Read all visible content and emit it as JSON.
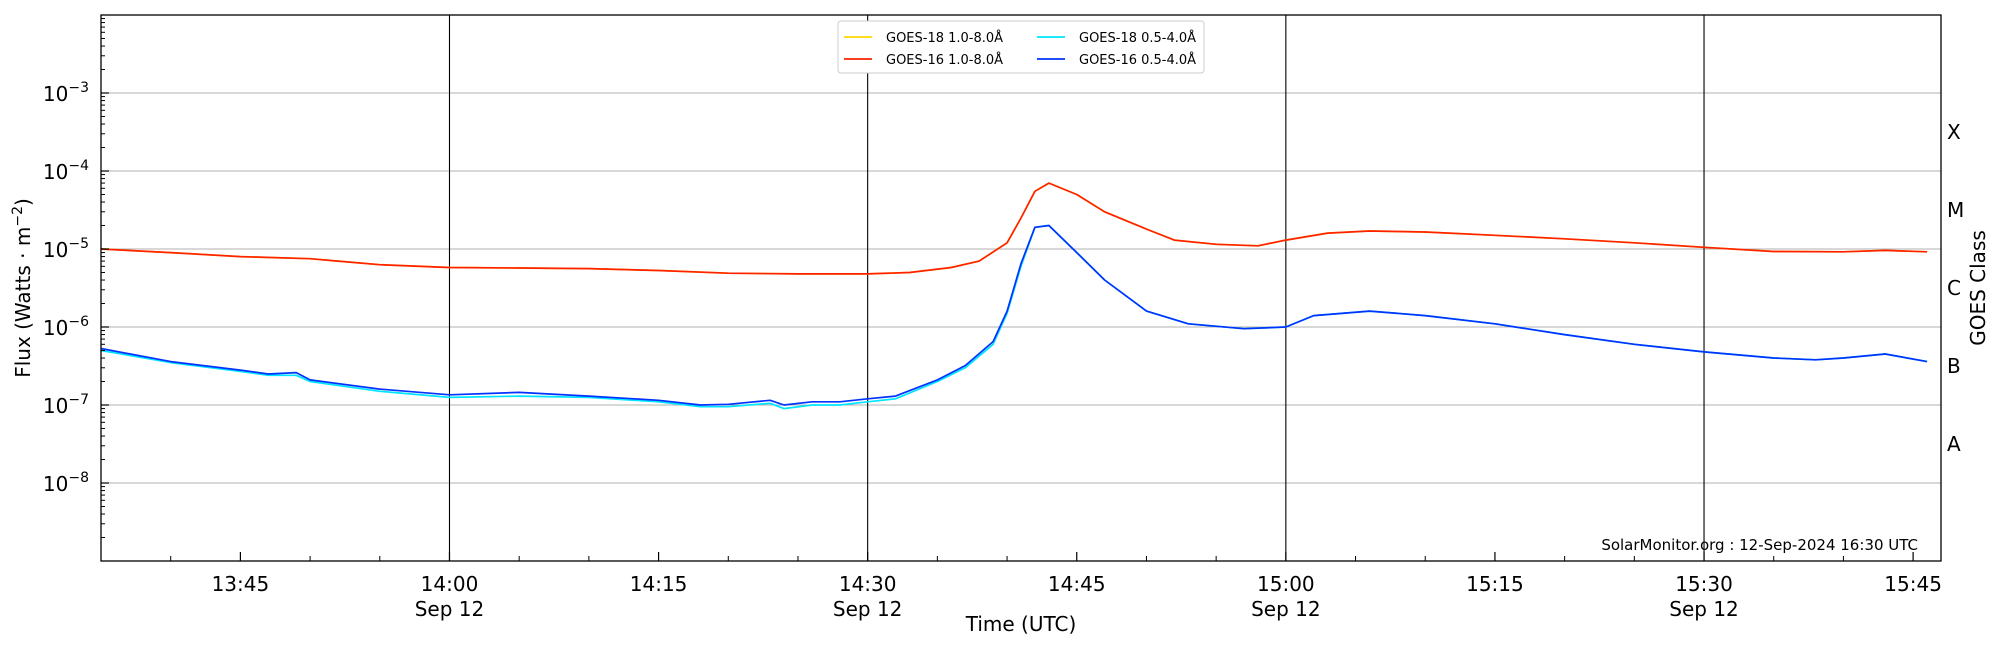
{
  "chart_data": {
    "type": "line",
    "title": "",
    "xlabel": "Time (UTC)",
    "ylabel_text": "Flux (Watts · m",
    "ylabel_exponent": "−2",
    "ylabel_close": ")",
    "y2label": "GOES Class",
    "y_scale": "log",
    "ylim": [
      1e-09,
      0.01
    ],
    "xlim": [
      "13:35",
      "15:47"
    ],
    "grid": "horizontal",
    "legend_position": "top-center",
    "credit": "SolarMonitor.org : 12-Sep-2024 16:30 UTC",
    "x_ticks": [
      {
        "time": "13:45",
        "label": "13:45",
        "date": ""
      },
      {
        "time": "14:00",
        "label": "14:00",
        "date": "Sep 12"
      },
      {
        "time": "14:15",
        "label": "14:15",
        "date": ""
      },
      {
        "time": "14:30",
        "label": "14:30",
        "date": "Sep 12"
      },
      {
        "time": "14:45",
        "label": "14:45",
        "date": ""
      },
      {
        "time": "15:00",
        "label": "15:00",
        "date": "Sep 12"
      },
      {
        "time": "15:15",
        "label": "15:15",
        "date": ""
      },
      {
        "time": "15:30",
        "label": "15:30",
        "date": "Sep 12"
      },
      {
        "time": "15:45",
        "label": "15:45",
        "date": ""
      }
    ],
    "day_lines": [
      "14:00",
      "14:30",
      "15:00",
      "15:30"
    ],
    "y_ticks": [
      {
        "value": 1e-08,
        "base": "10",
        "exp": "−8"
      },
      {
        "value": 1e-07,
        "base": "10",
        "exp": "−7"
      },
      {
        "value": 1e-06,
        "base": "10",
        "exp": "−6"
      },
      {
        "value": 1e-05,
        "base": "10",
        "exp": "−5"
      },
      {
        "value": 0.0001,
        "base": "10",
        "exp": "−4"
      },
      {
        "value": 0.001,
        "base": "10",
        "exp": "−3"
      }
    ],
    "goes_classes": [
      {
        "label": "A",
        "value": 3.16e-08
      },
      {
        "label": "B",
        "value": 3.16e-07
      },
      {
        "label": "C",
        "value": 3.16e-06
      },
      {
        "label": "M",
        "value": 3.16e-05
      },
      {
        "label": "X",
        "value": 0.000316
      }
    ],
    "series": [
      {
        "name": "GOES-18 1.0-8.0Å",
        "color": "#ffd700",
        "points": [
          [
            "13:35",
            1e-05
          ],
          [
            "13:40",
            9e-06
          ],
          [
            "13:45",
            8e-06
          ],
          [
            "13:50",
            7.5e-06
          ],
          [
            "13:52",
            7e-06
          ],
          [
            "13:55",
            6.3e-06
          ],
          [
            "14:00",
            5.8e-06
          ],
          [
            "14:05",
            5.7e-06
          ],
          [
            "14:10",
            5.6e-06
          ],
          [
            "14:15",
            5.3e-06
          ],
          [
            "14:20",
            4.9e-06
          ],
          [
            "14:25",
            4.8e-06
          ],
          [
            "14:30",
            4.8e-06
          ],
          [
            "14:33",
            5e-06
          ],
          [
            "14:36",
            5.8e-06
          ],
          [
            "14:38",
            7e-06
          ],
          [
            "14:40",
            1.2e-05
          ],
          [
            "14:41",
            2.5e-05
          ],
          [
            "14:42",
            5.5e-05
          ],
          [
            "14:43",
            7e-05
          ],
          [
            "14:45",
            5e-05
          ],
          [
            "14:47",
            3e-05
          ],
          [
            "14:50",
            1.8e-05
          ],
          [
            "14:52",
            1.3e-05
          ],
          [
            "14:55",
            1.15e-05
          ],
          [
            "14:58",
            1.1e-05
          ],
          [
            "15:00",
            1.3e-05
          ],
          [
            "15:03",
            1.6e-05
          ],
          [
            "15:06",
            1.7e-05
          ],
          [
            "15:10",
            1.65e-05
          ],
          [
            "15:15",
            1.5e-05
          ],
          [
            "15:20",
            1.35e-05
          ],
          [
            "15:25",
            1.2e-05
          ],
          [
            "15:30",
            1.05e-05
          ],
          [
            "15:35",
            9.3e-06
          ],
          [
            "15:40",
            9.2e-06
          ],
          [
            "15:43",
            9.6e-06
          ],
          [
            "15:46",
            9.2e-06
          ]
        ]
      },
      {
        "name": "GOES-16 1.0-8.0Å",
        "color": "#ff2200",
        "points": [
          [
            "13:35",
            1e-05
          ],
          [
            "13:40",
            9e-06
          ],
          [
            "13:45",
            8e-06
          ],
          [
            "13:50",
            7.5e-06
          ],
          [
            "13:52",
            7e-06
          ],
          [
            "13:55",
            6.3e-06
          ],
          [
            "14:00",
            5.8e-06
          ],
          [
            "14:05",
            5.7e-06
          ],
          [
            "14:10",
            5.6e-06
          ],
          [
            "14:15",
            5.3e-06
          ],
          [
            "14:20",
            4.9e-06
          ],
          [
            "14:25",
            4.8e-06
          ],
          [
            "14:30",
            4.8e-06
          ],
          [
            "14:33",
            5e-06
          ],
          [
            "14:36",
            5.8e-06
          ],
          [
            "14:38",
            7e-06
          ],
          [
            "14:40",
            1.2e-05
          ],
          [
            "14:41",
            2.5e-05
          ],
          [
            "14:42",
            5.5e-05
          ],
          [
            "14:43",
            7e-05
          ],
          [
            "14:45",
            5e-05
          ],
          [
            "14:47",
            3e-05
          ],
          [
            "14:50",
            1.8e-05
          ],
          [
            "14:52",
            1.3e-05
          ],
          [
            "14:55",
            1.15e-05
          ],
          [
            "14:58",
            1.1e-05
          ],
          [
            "15:00",
            1.3e-05
          ],
          [
            "15:03",
            1.6e-05
          ],
          [
            "15:06",
            1.7e-05
          ],
          [
            "15:10",
            1.65e-05
          ],
          [
            "15:15",
            1.5e-05
          ],
          [
            "15:20",
            1.35e-05
          ],
          [
            "15:25",
            1.2e-05
          ],
          [
            "15:30",
            1.05e-05
          ],
          [
            "15:35",
            9.3e-06
          ],
          [
            "15:40",
            9.2e-06
          ],
          [
            "15:43",
            9.6e-06
          ],
          [
            "15:46",
            9.2e-06
          ]
        ]
      },
      {
        "name": "GOES-18 0.5-4.0Å",
        "color": "#00e5ff",
        "points": [
          [
            "13:35",
            5e-07
          ],
          [
            "13:40",
            3.5e-07
          ],
          [
            "13:45",
            2.7e-07
          ],
          [
            "13:47",
            2.4e-07
          ],
          [
            "13:49",
            2.4e-07
          ],
          [
            "13:50",
            2e-07
          ],
          [
            "13:55",
            1.5e-07
          ],
          [
            "14:00",
            1.25e-07
          ],
          [
            "14:05",
            1.3e-07
          ],
          [
            "14:10",
            1.25e-07
          ],
          [
            "14:15",
            1.1e-07
          ],
          [
            "14:18",
            9.5e-08
          ],
          [
            "14:20",
            9.5e-08
          ],
          [
            "14:23",
            1.05e-07
          ],
          [
            "14:24",
            9e-08
          ],
          [
            "14:26",
            1e-07
          ],
          [
            "14:28",
            1e-07
          ],
          [
            "14:30",
            1.1e-07
          ],
          [
            "14:32",
            1.2e-07
          ],
          [
            "14:35",
            2e-07
          ],
          [
            "14:37",
            3e-07
          ],
          [
            "14:39",
            6e-07
          ],
          [
            "14:40",
            1.5e-06
          ],
          [
            "14:41",
            6e-06
          ],
          [
            "14:42",
            1.9e-05
          ],
          [
            "14:43",
            2e-05
          ],
          [
            "14:45",
            9e-06
          ],
          [
            "14:47",
            4e-06
          ],
          [
            "14:50",
            1.6e-06
          ],
          [
            "14:53",
            1.1e-06
          ],
          [
            "14:57",
            9.5e-07
          ],
          [
            "15:00",
            1e-06
          ],
          [
            "15:02",
            1.4e-06
          ],
          [
            "15:06",
            1.6e-06
          ],
          [
            "15:10",
            1.4e-06
          ],
          [
            "15:15",
            1.1e-06
          ],
          [
            "15:20",
            8e-07
          ],
          [
            "15:25",
            6e-07
          ],
          [
            "15:30",
            4.8e-07
          ],
          [
            "15:35",
            4e-07
          ],
          [
            "15:38",
            3.8e-07
          ],
          [
            "15:40",
            4e-07
          ],
          [
            "15:43",
            4.5e-07
          ],
          [
            "15:46",
            3.6e-07
          ]
        ]
      },
      {
        "name": "GOES-16 0.5-4.0Å",
        "color": "#0033ff",
        "points": [
          [
            "13:35",
            5.3e-07
          ],
          [
            "13:40",
            3.6e-07
          ],
          [
            "13:45",
            2.8e-07
          ],
          [
            "13:47",
            2.5e-07
          ],
          [
            "13:49",
            2.6e-07
          ],
          [
            "13:50",
            2.1e-07
          ],
          [
            "13:55",
            1.6e-07
          ],
          [
            "14:00",
            1.35e-07
          ],
          [
            "14:05",
            1.45e-07
          ],
          [
            "14:10",
            1.3e-07
          ],
          [
            "14:15",
            1.15e-07
          ],
          [
            "14:18",
            1e-07
          ],
          [
            "14:20",
            1.02e-07
          ],
          [
            "14:23",
            1.15e-07
          ],
          [
            "14:24",
            1e-07
          ],
          [
            "14:26",
            1.1e-07
          ],
          [
            "14:28",
            1.1e-07
          ],
          [
            "14:30",
            1.2e-07
          ],
          [
            "14:32",
            1.3e-07
          ],
          [
            "14:35",
            2.1e-07
          ],
          [
            "14:37",
            3.2e-07
          ],
          [
            "14:39",
            6.5e-07
          ],
          [
            "14:40",
            1.6e-06
          ],
          [
            "14:41",
            6.5e-06
          ],
          [
            "14:42",
            1.9e-05
          ],
          [
            "14:43",
            2e-05
          ],
          [
            "14:45",
            9e-06
          ],
          [
            "14:47",
            4e-06
          ],
          [
            "14:50",
            1.6e-06
          ],
          [
            "14:53",
            1.1e-06
          ],
          [
            "14:57",
            9.5e-07
          ],
          [
            "15:00",
            1e-06
          ],
          [
            "15:02",
            1.4e-06
          ],
          [
            "15:06",
            1.6e-06
          ],
          [
            "15:10",
            1.4e-06
          ],
          [
            "15:15",
            1.1e-06
          ],
          [
            "15:20",
            8e-07
          ],
          [
            "15:25",
            6e-07
          ],
          [
            "15:30",
            4.8e-07
          ],
          [
            "15:35",
            4e-07
          ],
          [
            "15:38",
            3.8e-07
          ],
          [
            "15:40",
            4e-07
          ],
          [
            "15:43",
            4.5e-07
          ],
          [
            "15:46",
            3.6e-07
          ]
        ]
      }
    ],
    "legend_order": [
      0,
      2,
      1,
      3
    ]
  }
}
